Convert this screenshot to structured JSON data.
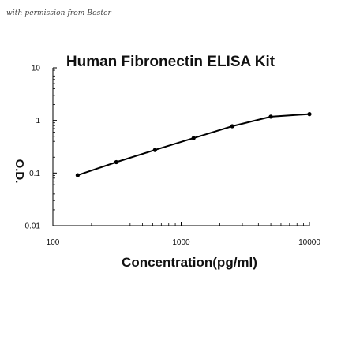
{
  "watermark": "with permission from Boster",
  "chart_data": {
    "type": "line",
    "title": "Human Fibronectin ELISA Kit",
    "xlabel": "Concentration(pg/ml)",
    "ylabel": "O.D.",
    "x_scale": "log",
    "y_scale": "log",
    "xlim": [
      100,
      10000
    ],
    "ylim": [
      0.01,
      10
    ],
    "x_ticks": [
      100,
      1000,
      10000
    ],
    "x_tick_labels": [
      "100",
      "1000",
      "10000"
    ],
    "y_ticks": [
      10,
      1,
      0.1,
      0.01
    ],
    "y_tick_labels": [
      "10",
      "1",
      "0.1",
      "0.01"
    ],
    "grid": false,
    "legend": "none",
    "series": [
      {
        "x": [
          156,
          312,
          625,
          1250,
          2500,
          5000,
          10000
        ],
        "y": [
          0.091,
          0.161,
          0.274,
          0.461,
          0.775,
          1.18,
          1.32
        ],
        "color": "#000000"
      }
    ]
  }
}
